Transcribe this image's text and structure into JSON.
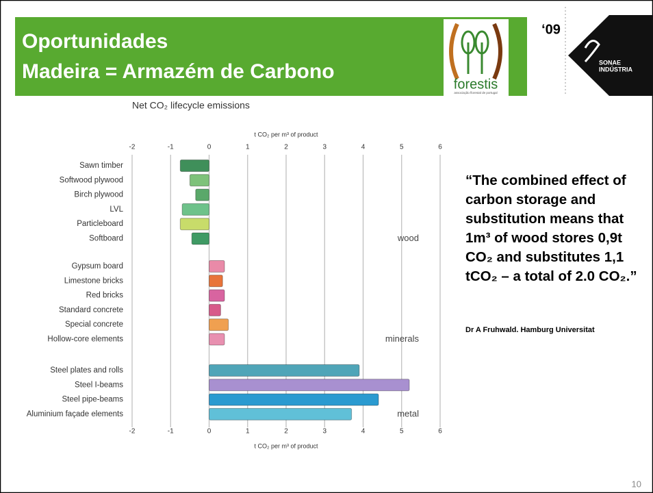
{
  "header": {
    "title_lines": [
      "Oportunidades",
      "Madeira = Armazém de Carbono"
    ]
  },
  "logos": {
    "forestis": "forestis",
    "forestis_tagline": "associação florestal de portugal",
    "year": "‘09",
    "sonae_line1": "SONAE",
    "sonae_line2": "INDÚSTRIA"
  },
  "chart_data": {
    "type": "bar",
    "orientation": "horizontal",
    "title": "Net CO₂ lifecycle emissions",
    "xlabel": "t CO₂ per m³ of product",
    "xlim": [
      -2,
      6
    ],
    "xticks": [
      -2,
      -1,
      0,
      1,
      2,
      3,
      4,
      5,
      6
    ],
    "grid": true,
    "groups": [
      {
        "name": "wood",
        "categories": [
          "Sawn timber",
          "Softwood plywood",
          "Birch plywood",
          "LVL",
          "Particleboard",
          "Softboard"
        ],
        "values": [
          -0.75,
          -0.5,
          -0.35,
          -0.7,
          -0.75,
          -0.45
        ],
        "colors": [
          "#3f8f5a",
          "#7ec27a",
          "#5aa86a",
          "#6ec28a",
          "#c8dc6a",
          "#3f9a64"
        ]
      },
      {
        "name": "minerals",
        "categories": [
          "Gypsum board",
          "Limestone bricks",
          "Red bricks",
          "Standard concrete",
          "Special concrete",
          "Hollow-core elements"
        ],
        "values": [
          0.4,
          0.35,
          0.4,
          0.3,
          0.5,
          0.4
        ],
        "colors": [
          "#e98aa8",
          "#e8743a",
          "#d864a0",
          "#d85a8a",
          "#f0a050",
          "#e890b0"
        ]
      },
      {
        "name": "metal",
        "categories": [
          "Steel plates and rolls",
          "Steel I-beams",
          "Steel pipe-beams",
          "Aluminium façade elements"
        ],
        "values": [
          3.9,
          5.2,
          4.4,
          3.7
        ],
        "colors": [
          "#4fa5b8",
          "#a890d0",
          "#2a9ad0",
          "#60c0d8"
        ]
      }
    ]
  },
  "quote": "“The combined effect of carbon storage and substitution means that 1m³ of wood stores 0,9t CO₂ and substitutes 1,1 tCO₂ – a total of 2.0 CO₂.”",
  "attribution": "Dr A Fruhwald. Hamburg Universitat",
  "page_number": "10"
}
